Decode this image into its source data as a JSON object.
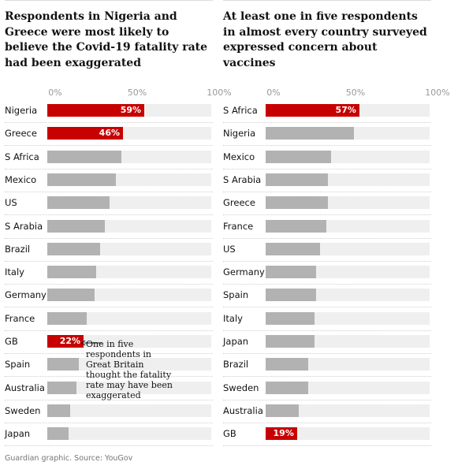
{
  "chart_data": [
    {
      "type": "bar",
      "orientation": "horizontal",
      "title": "Respondents in Nigeria and Greece were most likely to believe the Covid-19 fatality rate had been exaggerated",
      "xlim": [
        0,
        100
      ],
      "ticks": [
        "0%",
        "50%",
        "100%"
      ],
      "tick_values": [
        0,
        50,
        100
      ],
      "categories": [
        "Nigeria",
        "Greece",
        "S Africa",
        "Mexico",
        "US",
        "S Arabia",
        "Brazil",
        "Italy",
        "Germany",
        "France",
        "GB",
        "Spain",
        "Australia",
        "Sweden",
        "Japan"
      ],
      "values": [
        59,
        46,
        45,
        42,
        38,
        35,
        32,
        30,
        29,
        24,
        22,
        19,
        18,
        14,
        13
      ],
      "highlighted": [
        "Nigeria",
        "Greece",
        "GB"
      ],
      "value_labels": {
        "Nigeria": "59%",
        "Greece": "46%",
        "GB": "22%"
      },
      "annotation": {
        "category": "GB",
        "lines": [
          "One in five",
          "respondents in",
          "Great Britain",
          "thought the fatality",
          "rate may have been",
          "exaggerated"
        ]
      }
    },
    {
      "type": "bar",
      "orientation": "horizontal",
      "title": "At least one in five respondents in almost every country surveyed expressed concern about vaccines",
      "xlim": [
        0,
        100
      ],
      "ticks": [
        "0%",
        "50%",
        "100%"
      ],
      "tick_values": [
        0,
        50,
        100
      ],
      "categories": [
        "S Africa",
        "Nigeria",
        "Mexico",
        "S Arabia",
        "Greece",
        "France",
        "US",
        "Germany",
        "Spain",
        "Italy",
        "Japan",
        "Brazil",
        "Sweden",
        "Australia",
        "GB"
      ],
      "values": [
        57,
        54,
        40,
        38,
        38,
        37,
        33,
        31,
        31,
        30,
        30,
        26,
        26,
        20,
        19
      ],
      "highlighted": [
        "S Africa",
        "GB"
      ],
      "value_labels": {
        "S Africa": "57%",
        "GB": "19%"
      }
    }
  ],
  "colors": {
    "highlight": "#c70000",
    "bar": "#b2b2b2",
    "track": "#efefef"
  },
  "source": "Guardian graphic. Source: YouGov"
}
